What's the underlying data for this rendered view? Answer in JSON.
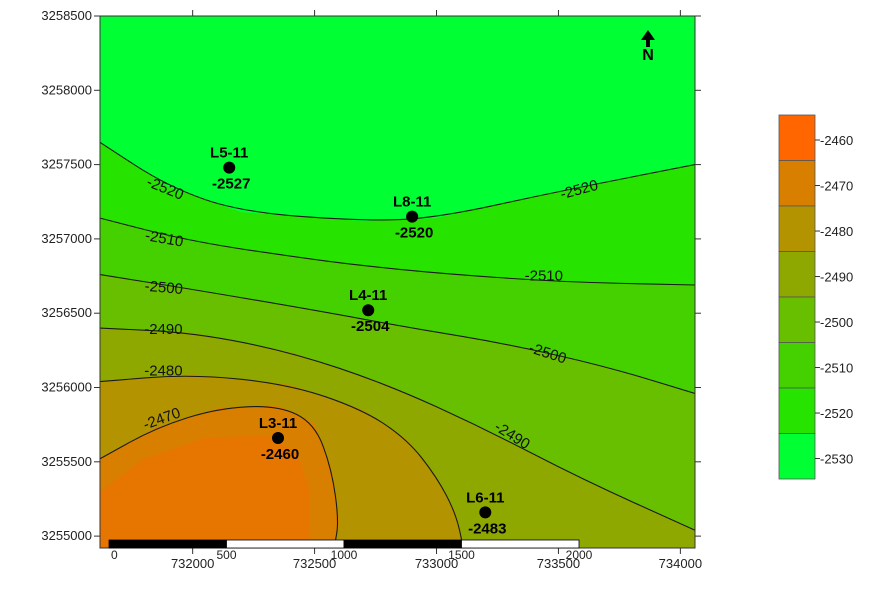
{
  "chart_data": {
    "type": "contour",
    "x_ticks": [
      732000,
      732500,
      733000,
      733500,
      734000
    ],
    "y_ticks": [
      3255000,
      3255500,
      3256000,
      3256500,
      3257000,
      3257500,
      3258000,
      3258500
    ],
    "xlim": [
      731620,
      734060
    ],
    "ylim": [
      3254920,
      3258500
    ],
    "legend": {
      "levels": [
        -2460,
        -2470,
        -2480,
        -2490,
        -2500,
        -2510,
        -2520,
        -2530
      ],
      "colors": [
        "#ff6600",
        "#d97f00",
        "#b39400",
        "#8fa800",
        "#68bf00",
        "#45d000",
        "#26e300",
        "#00ff33"
      ]
    },
    "wells": [
      {
        "name": "L5-11",
        "value": "-2527",
        "x": 732150,
        "y": 3257480
      },
      {
        "name": "L8-11",
        "value": "-2520",
        "x": 732900,
        "y": 3257150
      },
      {
        "name": "L4-11",
        "value": "-2504",
        "x": 732720,
        "y": 3256520
      },
      {
        "name": "L3-11",
        "value": "-2460",
        "x": 732350,
        "y": 3255660
      },
      {
        "name": "L6-11",
        "value": "-2483",
        "x": 733200,
        "y": 3255160
      }
    ],
    "contours": [
      {
        "level": "-2520",
        "points": [
          [
            731620,
            3257650
          ],
          [
            731900,
            3257350
          ],
          [
            732200,
            3257180
          ],
          [
            732700,
            3257120
          ],
          [
            733000,
            3257140
          ],
          [
            733500,
            3257320
          ],
          [
            734060,
            3257500
          ]
        ],
        "labels": [
          {
            "text": "-2520",
            "x": 731880,
            "y": 3257310,
            "angle": 22
          },
          {
            "text": "-2520",
            "x": 733590,
            "y": 3257300,
            "angle": -15
          }
        ]
      },
      {
        "level": "-2510",
        "points": [
          [
            731620,
            3257140
          ],
          [
            732000,
            3256980
          ],
          [
            732500,
            3256860
          ],
          [
            732700,
            3256820
          ],
          [
            733000,
            3256770
          ],
          [
            733500,
            3256710
          ],
          [
            734060,
            3256690
          ]
        ],
        "labels": [
          {
            "text": "-2510",
            "x": 731880,
            "y": 3256970,
            "angle": 10
          },
          {
            "text": "-2510",
            "x": 733440,
            "y": 3256720,
            "angle": 0
          }
        ]
      },
      {
        "level": "-2500",
        "points": [
          [
            731620,
            3256760
          ],
          [
            732000,
            3256660
          ],
          [
            732500,
            3256520
          ],
          [
            732900,
            3256400
          ],
          [
            733300,
            3256290
          ],
          [
            733700,
            3256140
          ],
          [
            734060,
            3255960
          ]
        ],
        "labels": [
          {
            "text": "-2500",
            "x": 731880,
            "y": 3256640,
            "angle": 5
          },
          {
            "text": "-2500",
            "x": 733450,
            "y": 3256200,
            "angle": 18
          }
        ]
      },
      {
        "level": "-2490",
        "points": [
          [
            731620,
            3256400
          ],
          [
            732000,
            3256370
          ],
          [
            732400,
            3256240
          ],
          [
            732800,
            3256020
          ],
          [
            733200,
            3255720
          ],
          [
            733600,
            3255380
          ],
          [
            734060,
            3255040
          ]
        ],
        "labels": [
          {
            "text": "-2490",
            "x": 731880,
            "y": 3256360,
            "angle": 0
          },
          {
            "text": "-2490",
            "x": 733300,
            "y": 3255650,
            "angle": 32
          }
        ]
      },
      {
        "level": "-2480",
        "points": [
          [
            731620,
            3256040
          ],
          [
            732000,
            3256090
          ],
          [
            732400,
            3256020
          ],
          [
            732700,
            3255850
          ],
          [
            732880,
            3255650
          ],
          [
            733000,
            3255400
          ],
          [
            733080,
            3255150
          ],
          [
            733110,
            3254920
          ]
        ],
        "labels": [
          {
            "text": "-2480",
            "x": 731880,
            "y": 3256080,
            "angle": 0
          }
        ]
      },
      {
        "level": "-2470",
        "points": [
          [
            731620,
            3255520
          ],
          [
            731850,
            3255730
          ],
          [
            732100,
            3255860
          ],
          [
            732350,
            3255880
          ],
          [
            732500,
            3255760
          ],
          [
            732570,
            3255450
          ],
          [
            732600,
            3255100
          ],
          [
            732580,
            3254920
          ]
        ],
        "labels": [
          {
            "text": "-2470",
            "x": 731880,
            "y": 3255760,
            "angle": -20
          }
        ]
      }
    ],
    "scale_bar": {
      "labels": [
        "0",
        "500",
        "1000",
        "1500",
        "2000"
      ]
    },
    "north_arrow": "N"
  }
}
